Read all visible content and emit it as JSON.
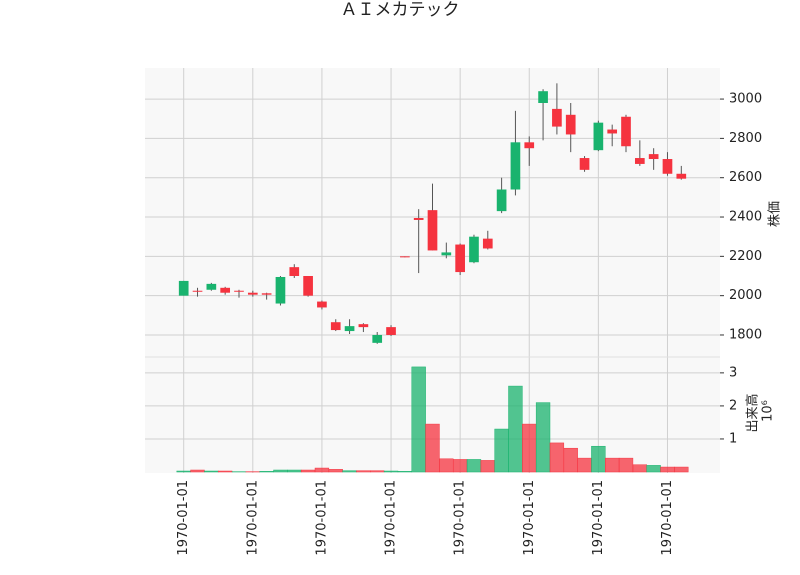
{
  "chart_data": {
    "type": "candlestick",
    "title": "ＡＩメカテック",
    "ylabel": "株価",
    "volume_label": "出来高",
    "volume_offset_text": "10⁶",
    "categories": [
      "1970-01-01",
      null,
      null,
      null,
      null,
      "1970-01-01",
      null,
      null,
      null,
      null,
      "1970-01-01",
      null,
      null,
      null,
      null,
      "1970-01-01",
      null,
      null,
      null,
      null,
      "1970-01-01",
      null,
      null,
      null,
      null,
      "1970-01-01",
      null,
      null,
      null,
      null,
      "1970-01-01",
      null,
      null,
      null,
      null,
      "1970-01-01",
      null
    ],
    "open": [
      2000,
      2025,
      2030,
      2040,
      2025,
      2015,
      2012,
      1960,
      2145,
      2100,
      1970,
      1865,
      1820,
      1855,
      1760,
      1840,
      2200,
      2395,
      2435,
      2205,
      2260,
      2170,
      2290,
      2430,
      2540,
      2780,
      2980,
      2950,
      2920,
      2700,
      2740,
      2845,
      2910,
      2700,
      2720,
      2695,
      2620
    ],
    "high": [
      2075,
      2040,
      2065,
      2045,
      2030,
      2025,
      2015,
      2100,
      2160,
      2100,
      1975,
      1880,
      1880,
      1860,
      1815,
      1850,
      2200,
      2440,
      2570,
      2270,
      2265,
      2310,
      2330,
      2600,
      2940,
      2810,
      3050,
      3080,
      2980,
      2710,
      2890,
      2870,
      2920,
      2790,
      2750,
      2730,
      2660
    ],
    "low": [
      2000,
      1995,
      2025,
      2005,
      1990,
      1995,
      1980,
      1950,
      2090,
      1995,
      1930,
      1820,
      1805,
      1815,
      1755,
      1795,
      2195,
      2115,
      2230,
      2190,
      2105,
      2165,
      2235,
      2420,
      2510,
      2660,
      2790,
      2820,
      2730,
      2630,
      2735,
      2760,
      2730,
      2660,
      2640,
      2610,
      2590
    ],
    "close": [
      2075,
      2020,
      2060,
      2015,
      2020,
      2005,
      2005,
      2095,
      2100,
      2000,
      1940,
      1825,
      1845,
      1840,
      1800,
      1800,
      2195,
      2385,
      2230,
      2220,
      2120,
      2300,
      2240,
      2540,
      2780,
      2750,
      3040,
      2860,
      2820,
      2640,
      2880,
      2825,
      2760,
      2670,
      2695,
      2620,
      2595
    ],
    "volume": [
      0.03,
      0.06,
      0.03,
      0.03,
      0.01,
      0.01,
      0.02,
      0.06,
      0.06,
      0.06,
      0.12,
      0.08,
      0.04,
      0.04,
      0.04,
      0.03,
      0.02,
      3.18,
      1.45,
      0.4,
      0.38,
      0.38,
      0.35,
      1.3,
      2.6,
      1.45,
      2.1,
      0.88,
      0.72,
      0.42,
      0.78,
      0.42,
      0.42,
      0.22,
      0.2,
      0.15,
      0.15
    ],
    "up_color": "#19b36e",
    "down_color": "#f5333f",
    "xlim": [
      -2.8,
      38.8
    ],
    "ylim": [
      1688,
      3158
    ],
    "yticks": [
      1800,
      2000,
      2200,
      2400,
      2600,
      2800,
      3000
    ],
    "volume_ylim": [
      0,
      3.48
    ],
    "volume_yticks": [
      1,
      2,
      3
    ],
    "grid": true
  }
}
